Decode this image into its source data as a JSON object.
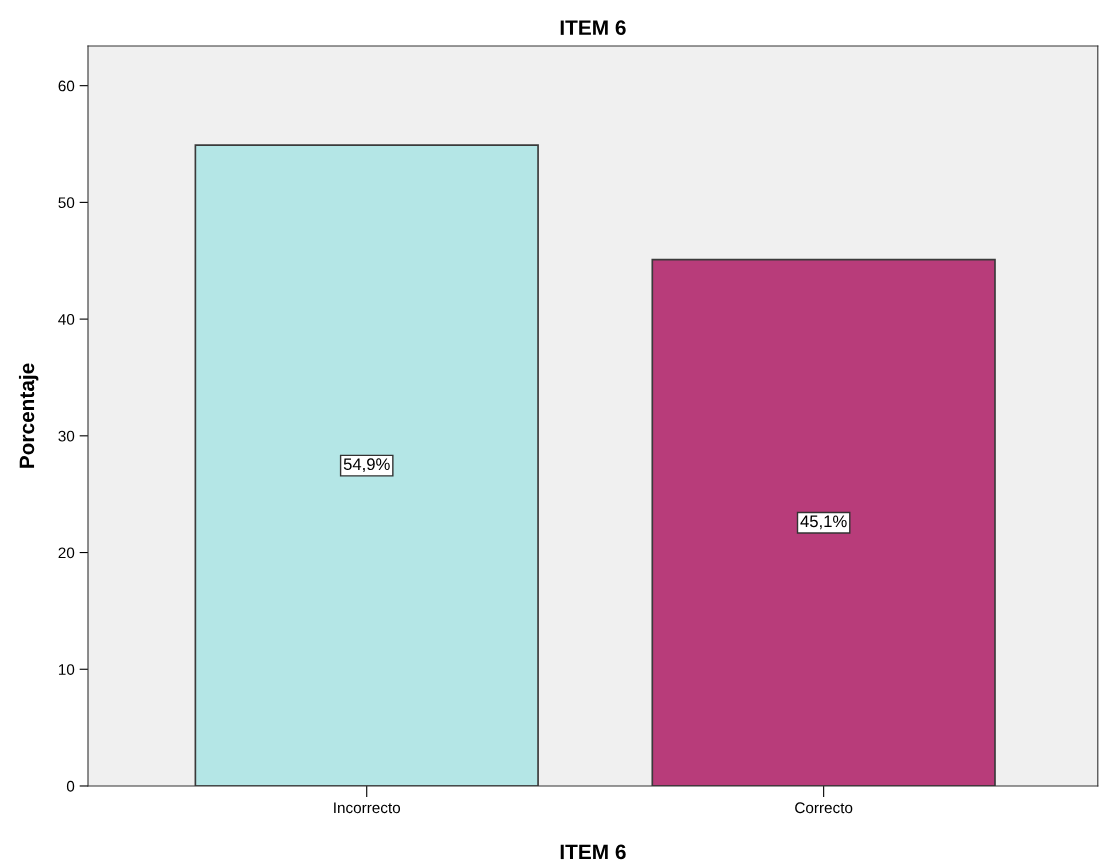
{
  "chart_data": {
    "type": "bar",
    "title": "ITEM 6",
    "xlabel": "ITEM 6",
    "ylabel": "Porcentaje",
    "categories": [
      "Incorrecto",
      "Correcto"
    ],
    "values": [
      54.9,
      45.1
    ],
    "value_labels": [
      "54,9%",
      "45,1%"
    ],
    "colors": [
      "#b4e6e6",
      "#b83c7a"
    ],
    "ylim": [
      0,
      63.4
    ],
    "yticks": [
      0,
      10,
      20,
      30,
      40,
      50,
      60
    ],
    "grid": false,
    "legend": false
  }
}
